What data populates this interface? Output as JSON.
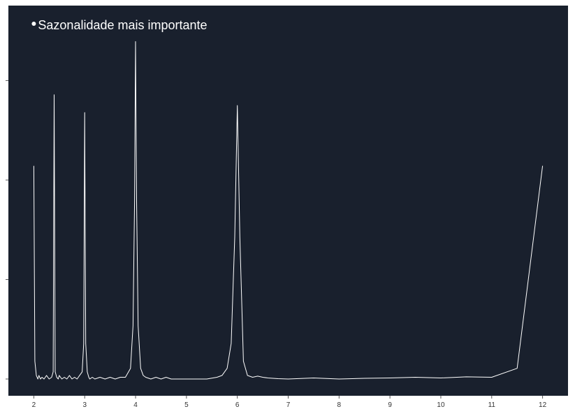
{
  "colors": {
    "page_background": "#ffffff",
    "panel_background": "#19202d",
    "line": "#ffffff",
    "tick_text": "#333333",
    "axis_tick": "#555555"
  },
  "chart_data": {
    "type": "line",
    "title": "",
    "xlabel": "",
    "ylabel": "",
    "xlim": [
      1.5,
      12.5
    ],
    "ylim": [
      0,
      1
    ],
    "grid": false,
    "legend": "none",
    "x_ticks": [
      "2",
      "3",
      "4",
      "5",
      "6",
      "7",
      "8",
      "9",
      "10",
      "11",
      "12"
    ],
    "y_ticks_count": 4,
    "series": [
      {
        "x": [
          2.0,
          2.02,
          2.05,
          2.08,
          2.1,
          2.13,
          2.16,
          2.2,
          2.25,
          2.3,
          2.35,
          2.38,
          2.4,
          2.42,
          2.45,
          2.48,
          2.5,
          2.55,
          2.6,
          2.65,
          2.7,
          2.75,
          2.8,
          2.85,
          2.9,
          2.95,
          2.98,
          3.0,
          3.02,
          3.05,
          3.08,
          3.1,
          3.15,
          3.2,
          3.3,
          3.4,
          3.5,
          3.6,
          3.7,
          3.8,
          3.9,
          3.95,
          3.98,
          4.0,
          4.02,
          4.05,
          4.1,
          4.15,
          4.2,
          4.3,
          4.4,
          4.5,
          4.6,
          4.7,
          4.8,
          5.0,
          5.2,
          5.4,
          5.6,
          5.7,
          5.8,
          5.88,
          5.95,
          6.0,
          6.05,
          6.12,
          6.2,
          6.3,
          6.4,
          6.5,
          6.6,
          6.8,
          7.0,
          7.5,
          8.0,
          8.5,
          9.0,
          9.5,
          10.0,
          10.5,
          11.0,
          11.5,
          12.0
        ],
        "y": [
          0.6,
          0.05,
          0.01,
          0.0,
          0.01,
          0.0,
          0.005,
          0.0,
          0.01,
          0.0,
          0.005,
          0.02,
          0.8,
          0.02,
          0.005,
          0.0,
          0.01,
          0.0,
          0.005,
          0.0,
          0.01,
          0.0,
          0.005,
          0.0,
          0.01,
          0.02,
          0.1,
          0.75,
          0.1,
          0.02,
          0.005,
          0.0,
          0.005,
          0.0,
          0.005,
          0.0,
          0.005,
          0.0,
          0.005,
          0.005,
          0.03,
          0.15,
          0.5,
          0.95,
          0.5,
          0.15,
          0.03,
          0.01,
          0.005,
          0.0,
          0.005,
          0.0,
          0.005,
          0.0,
          0.0,
          0.0,
          0.0,
          0.0,
          0.005,
          0.01,
          0.03,
          0.1,
          0.4,
          0.77,
          0.4,
          0.05,
          0.01,
          0.005,
          0.008,
          0.005,
          0.003,
          0.001,
          0.0,
          0.003,
          0.0,
          0.002,
          0.003,
          0.005,
          0.003,
          0.006,
          0.005,
          0.03,
          0.6
        ]
      }
    ],
    "annotation": {
      "label": "Sazonalidade mais importante",
      "x": 2.0,
      "y": 1.0
    }
  }
}
